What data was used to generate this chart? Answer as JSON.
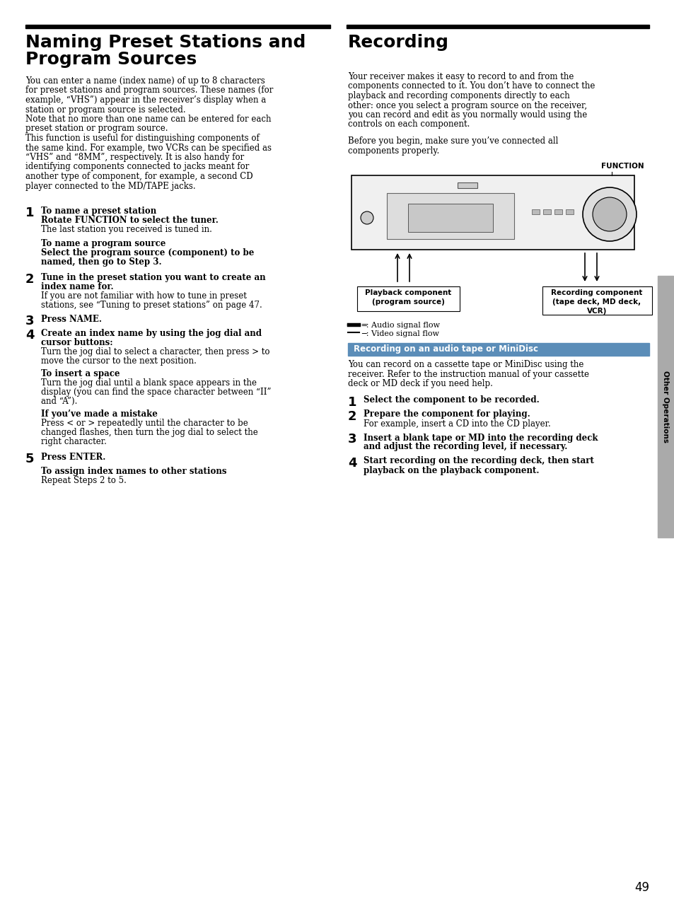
{
  "bg_color": "#ffffff",
  "text_color": "#000000",
  "page_number": "49",
  "sidebar_label": "Other Operations",
  "left_title_line1": "Naming Preset Stations and",
  "left_title_line2": "Program Sources",
  "right_title": "Recording",
  "left_body_para1_lines": [
    "You can enter a name (index name) of up to 8 characters",
    "for preset stations and program sources. These names (for",
    "example, “VHS”) appear in the receiver’s display when a",
    "station or program source is selected.",
    "Note that no more than one name can be entered for each",
    "preset station or program source.",
    "This function is useful for distinguishing components of",
    "the same kind. For example, two VCRs can be specified as",
    "“VHS” and “8MM”, respectively. It is also handy for",
    "identifying components connected to jacks meant for",
    "another type of component, for example, a second CD",
    "player connected to the MD/TAPE jacks."
  ],
  "right_body_para1_lines": [
    "Your receiver makes it easy to record to and from the",
    "components connected to it. You don’t have to connect the",
    "playback and recording components directly to each",
    "other: once you select a program source on the receiver,",
    "you can record and edit as you normally would using the",
    "controls on each component."
  ],
  "right_body_para2_lines": [
    "Before you begin, make sure you’ve connected all",
    "components properly."
  ],
  "function_label": "FUNCTION",
  "playback_label": "Playback component\n(program source)",
  "recording_label": "Recording component\n(tape deck, MD deck,\nVCR)",
  "audio_signal": "═: Audio signal flow",
  "video_signal": "─: Video signal flow",
  "section_title": "Recording on an audio tape or MiniDisc",
  "section_note_lines": [
    "You can record on a cassette tape or MiniDisc using the",
    "receiver. Refer to the instruction manual of your cassette",
    "deck or MD deck if you need help."
  ],
  "rec_step1": "Select the component to be recorded.",
  "rec_step2_title": "Prepare the component for playing.",
  "rec_step2_note": "For example, insert a CD into the CD player.",
  "rec_step3_line1": "Insert a blank tape or MD into the recording deck",
  "rec_step3_line2": "and adjust the recording level, if necessary.",
  "rec_step4_line1": "Start recording on the recording deck, then start",
  "rec_step4_line2": "playback on the playback component.",
  "step1_header": "To name a preset station",
  "step1_bold1": "Rotate FUNCTION to select the tuner.",
  "step1_note1": "The last station you received is tuned in.",
  "step1_header2": "To name a program source",
  "step1_bold2_line1": "Select the program source (component) to be",
  "step1_bold2_line2": "named, then go to Step 3.",
  "step2_bold_line1": "Tune in the preset station you want to create an",
  "step2_bold_line2": "index name for.",
  "step2_note_line1": "If you are not familiar with how to tune in preset",
  "step2_note_line2": "stations, see “Tuning to preset stations” on page 47.",
  "step3_bold": "Press NAME.",
  "step4_bold_line1": "Create an index name by using the jog dial and",
  "step4_bold_line2": "cursor buttons:",
  "step4_note_line1": "Turn the jog dial to select a character, then press > to",
  "step4_note_line2": "move the cursor to the next position.",
  "insert_header": "To insert a space",
  "insert_note_line1": "Turn the jog dial until a blank space appears in the",
  "insert_note_line2": "display (you can find the space character between “II”",
  "insert_note_line3": "and “A”).",
  "mistake_header": "If you’ve made a mistake",
  "mistake_note_line1": "Press < or > repeatedly until the character to be",
  "mistake_note_line2": "changed flashes, then turn the jog dial to select the",
  "mistake_note_line3": "right character.",
  "step5_bold": "Press ENTER.",
  "assign_header": "To assign index names to other stations",
  "assign_note": "Repeat Steps 2 to 5."
}
